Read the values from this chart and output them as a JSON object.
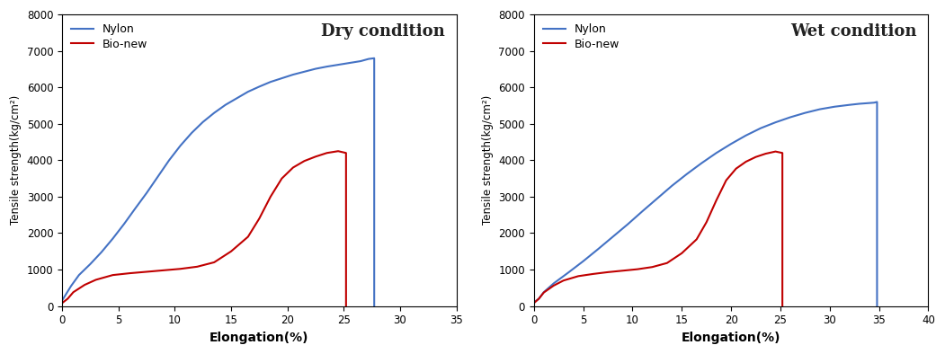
{
  "nylon_color": "#4472C4",
  "bionew_color": "#C00000",
  "background_color": "#FFFFFF",
  "ylabel": "Tensile strength(kg/cm²)",
  "xlabel": "Elongation(%)",
  "legend_nylon": "Nylon",
  "legend_bionew": "Bio-new",
  "dry": {
    "title": "Dry condition",
    "xlim": [
      0,
      35
    ],
    "ylim": [
      0,
      8000
    ],
    "xticks": [
      0,
      5,
      10,
      15,
      20,
      25,
      30,
      35
    ],
    "yticks": [
      0,
      1000,
      2000,
      3000,
      4000,
      5000,
      6000,
      7000,
      8000
    ],
    "nylon_x": [
      0,
      0.3,
      0.8,
      1.5,
      2.5,
      3.5,
      4.5,
      5.5,
      6.5,
      7.5,
      8.5,
      9.5,
      10.5,
      11.5,
      12.5,
      13.5,
      14.5,
      15.5,
      16.5,
      17.5,
      18.5,
      19.5,
      20.5,
      21.5,
      22.5,
      23.5,
      24.5,
      25.5,
      26.5,
      27.2,
      27.7,
      27.7
    ],
    "nylon_y": [
      150,
      300,
      550,
      850,
      1150,
      1480,
      1850,
      2250,
      2680,
      3100,
      3550,
      4000,
      4400,
      4750,
      5050,
      5300,
      5520,
      5700,
      5880,
      6020,
      6150,
      6250,
      6350,
      6430,
      6510,
      6570,
      6620,
      6670,
      6720,
      6780,
      6800,
      0
    ],
    "bionew_x": [
      0,
      0.5,
      1.0,
      2.0,
      3.0,
      4.5,
      6.0,
      7.5,
      9.0,
      10.5,
      12.0,
      13.5,
      15.0,
      16.5,
      17.5,
      18.5,
      19.5,
      20.5,
      21.5,
      22.5,
      23.5,
      24.5,
      25.2,
      25.2
    ],
    "bionew_y": [
      80,
      200,
      380,
      580,
      720,
      850,
      900,
      940,
      980,
      1020,
      1080,
      1200,
      1500,
      1900,
      2400,
      3000,
      3500,
      3800,
      3980,
      4100,
      4200,
      4250,
      4200,
      0
    ]
  },
  "wet": {
    "title": "Wet condition",
    "xlim": [
      0,
      40
    ],
    "ylim": [
      0,
      8000
    ],
    "xticks": [
      0,
      5,
      10,
      15,
      20,
      25,
      30,
      35,
      40
    ],
    "yticks": [
      0,
      1000,
      2000,
      3000,
      4000,
      5000,
      6000,
      7000,
      8000
    ],
    "nylon_x": [
      0,
      0.5,
      1.0,
      2.0,
      3.5,
      5.0,
      6.5,
      8.0,
      9.5,
      11.0,
      12.5,
      14.0,
      15.5,
      17.0,
      18.5,
      20.0,
      21.5,
      23.0,
      24.5,
      26.0,
      27.5,
      29.0,
      30.5,
      32.0,
      33.0,
      34.0,
      34.5,
      34.8,
      34.8
    ],
    "nylon_y": [
      100,
      200,
      380,
      620,
      920,
      1230,
      1560,
      1900,
      2240,
      2600,
      2950,
      3300,
      3620,
      3920,
      4200,
      4450,
      4680,
      4880,
      5040,
      5180,
      5300,
      5400,
      5470,
      5520,
      5550,
      5570,
      5580,
      5600,
      0
    ],
    "bionew_x": [
      0,
      0.5,
      1.0,
      2.0,
      3.0,
      4.5,
      6.0,
      7.5,
      9.0,
      10.5,
      12.0,
      13.5,
      15.0,
      16.5,
      17.5,
      18.5,
      19.5,
      20.5,
      21.5,
      22.5,
      23.5,
      24.5,
      25.2,
      25.2
    ],
    "bionew_y": [
      80,
      200,
      370,
      560,
      700,
      820,
      880,
      930,
      970,
      1010,
      1070,
      1180,
      1450,
      1830,
      2300,
      2900,
      3450,
      3770,
      3960,
      4090,
      4180,
      4240,
      4200,
      0
    ]
  }
}
